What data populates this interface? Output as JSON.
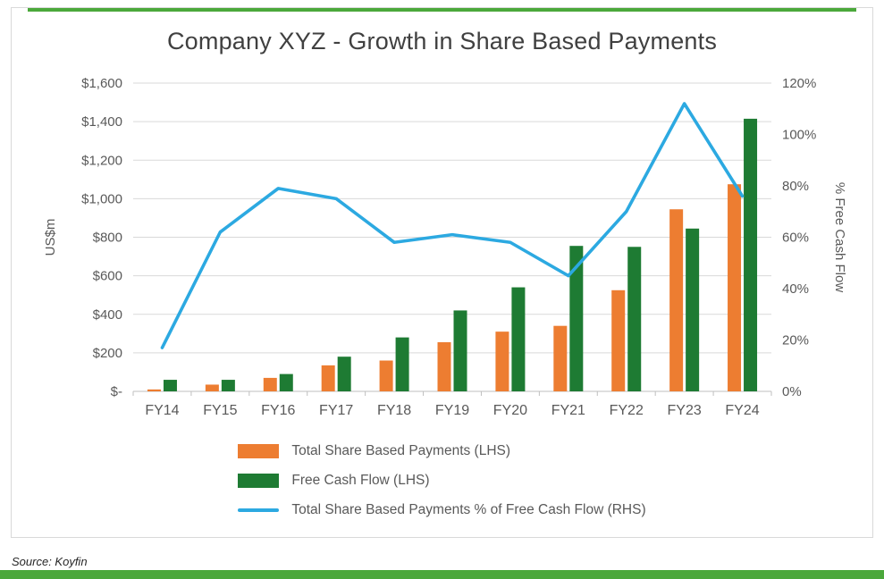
{
  "page": {
    "source_note": "Source: Koyfin",
    "accent_color": "#4BA83B",
    "text_color": "#595959",
    "title_color": "#404040",
    "gridline_color": "#D9D9D9",
    "axis_line_color": "#BFBFBF"
  },
  "chart_data": {
    "type": "combo-bar-line",
    "title": "Company XYZ - Growth in Share Based Payments",
    "categories": [
      "FY14",
      "FY15",
      "FY16",
      "FY17",
      "FY18",
      "FY19",
      "FY20",
      "FY21",
      "FY22",
      "FY23",
      "FY24"
    ],
    "left_axis": {
      "label": "US$m",
      "min": 0,
      "max": 1600,
      "step": 200,
      "tick_labels": [
        "$-",
        "$200",
        "$400",
        "$600",
        "$800",
        "$1,000",
        "$1,200",
        "$1,400",
        "$1,600"
      ]
    },
    "right_axis": {
      "label": "% Free Cash Flow",
      "min": 0,
      "max": 120,
      "step": 20,
      "tick_labels": [
        "0%",
        "20%",
        "40%",
        "60%",
        "80%",
        "100%",
        "120%"
      ]
    },
    "series": [
      {
        "name": "Total Share Based Payments (LHS)",
        "type": "bar",
        "axis": "left",
        "color": "#ED7D31",
        "values": [
          10,
          35,
          70,
          135,
          160,
          255,
          310,
          340,
          525,
          945,
          1075
        ]
      },
      {
        "name": "Free Cash Flow (LHS)",
        "type": "bar",
        "axis": "left",
        "color": "#1E7B33",
        "values": [
          60,
          60,
          90,
          180,
          280,
          420,
          540,
          755,
          750,
          845,
          1415
        ]
      },
      {
        "name": "Total Share Based Payments % of Free Cash Flow (RHS)",
        "type": "line",
        "axis": "right",
        "color": "#2CA9E1",
        "values": [
          17,
          62,
          79,
          75,
          58,
          61,
          58,
          45,
          70,
          112,
          76
        ]
      }
    ],
    "grid": true,
    "legend_position": "bottom-centered-stacked"
  }
}
